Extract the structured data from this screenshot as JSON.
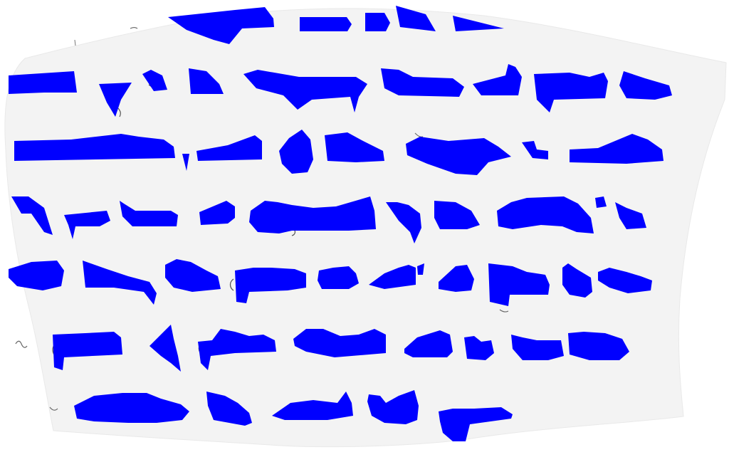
{
  "document": {
    "kind": "redacted-handwritten-page",
    "visible_text": "",
    "redaction_color": "#0000ff",
    "paper_color": "#f3f3f3",
    "background_color": "#ffffff",
    "stroke_color": "#555555",
    "redaction_lines": 7
  }
}
